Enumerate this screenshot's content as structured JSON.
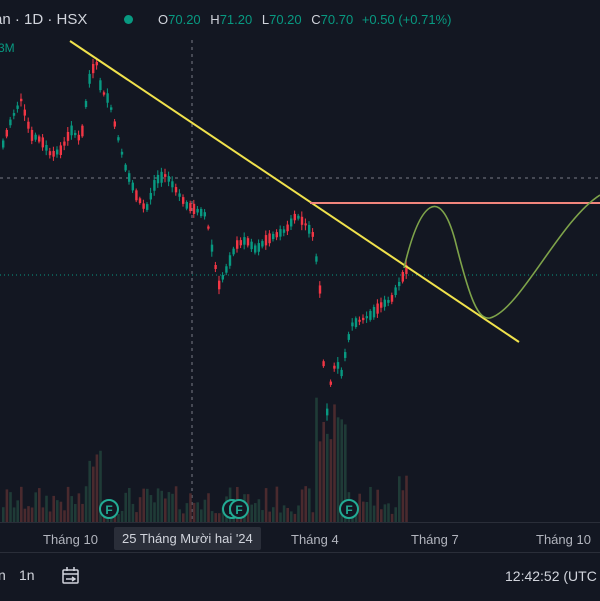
{
  "header": {
    "symbol": "an · 1D · HSX",
    "open_label": "O",
    "open": "70.20",
    "high_label": "H",
    "high": "71.20",
    "low_label": "L",
    "low": "70.20",
    "close_label": "C",
    "close": "70.70",
    "change": "+0.50 (+0.71%)",
    "volume_marker": "3M",
    "status_color": "#089981"
  },
  "chart_data": {
    "type": "candlestick",
    "candles": [],
    "earnings_markers": [
      "F",
      "F",
      "F",
      "F"
    ],
    "annotations": [
      "downtrend line",
      "horizontal resistance",
      "projected path"
    ],
    "colors": {
      "up": "#089981",
      "down": "#f23645",
      "trendline": "#f0e24c",
      "resistance": "#f2867d",
      "projection": "#7ea34a",
      "volume": "#4a2a2e"
    }
  },
  "time_axis": {
    "ticks": [
      "Tháng 10",
      "Tháng 4",
      "Tháng 7",
      "Tháng 10"
    ],
    "highlight": "25 Tháng Mười hai '24"
  },
  "bottom_bar": {
    "tf1": "n",
    "tf2": "1n",
    "calendar_icon": "calendar-range-icon",
    "clock": "12:42:52 (UTC"
  }
}
